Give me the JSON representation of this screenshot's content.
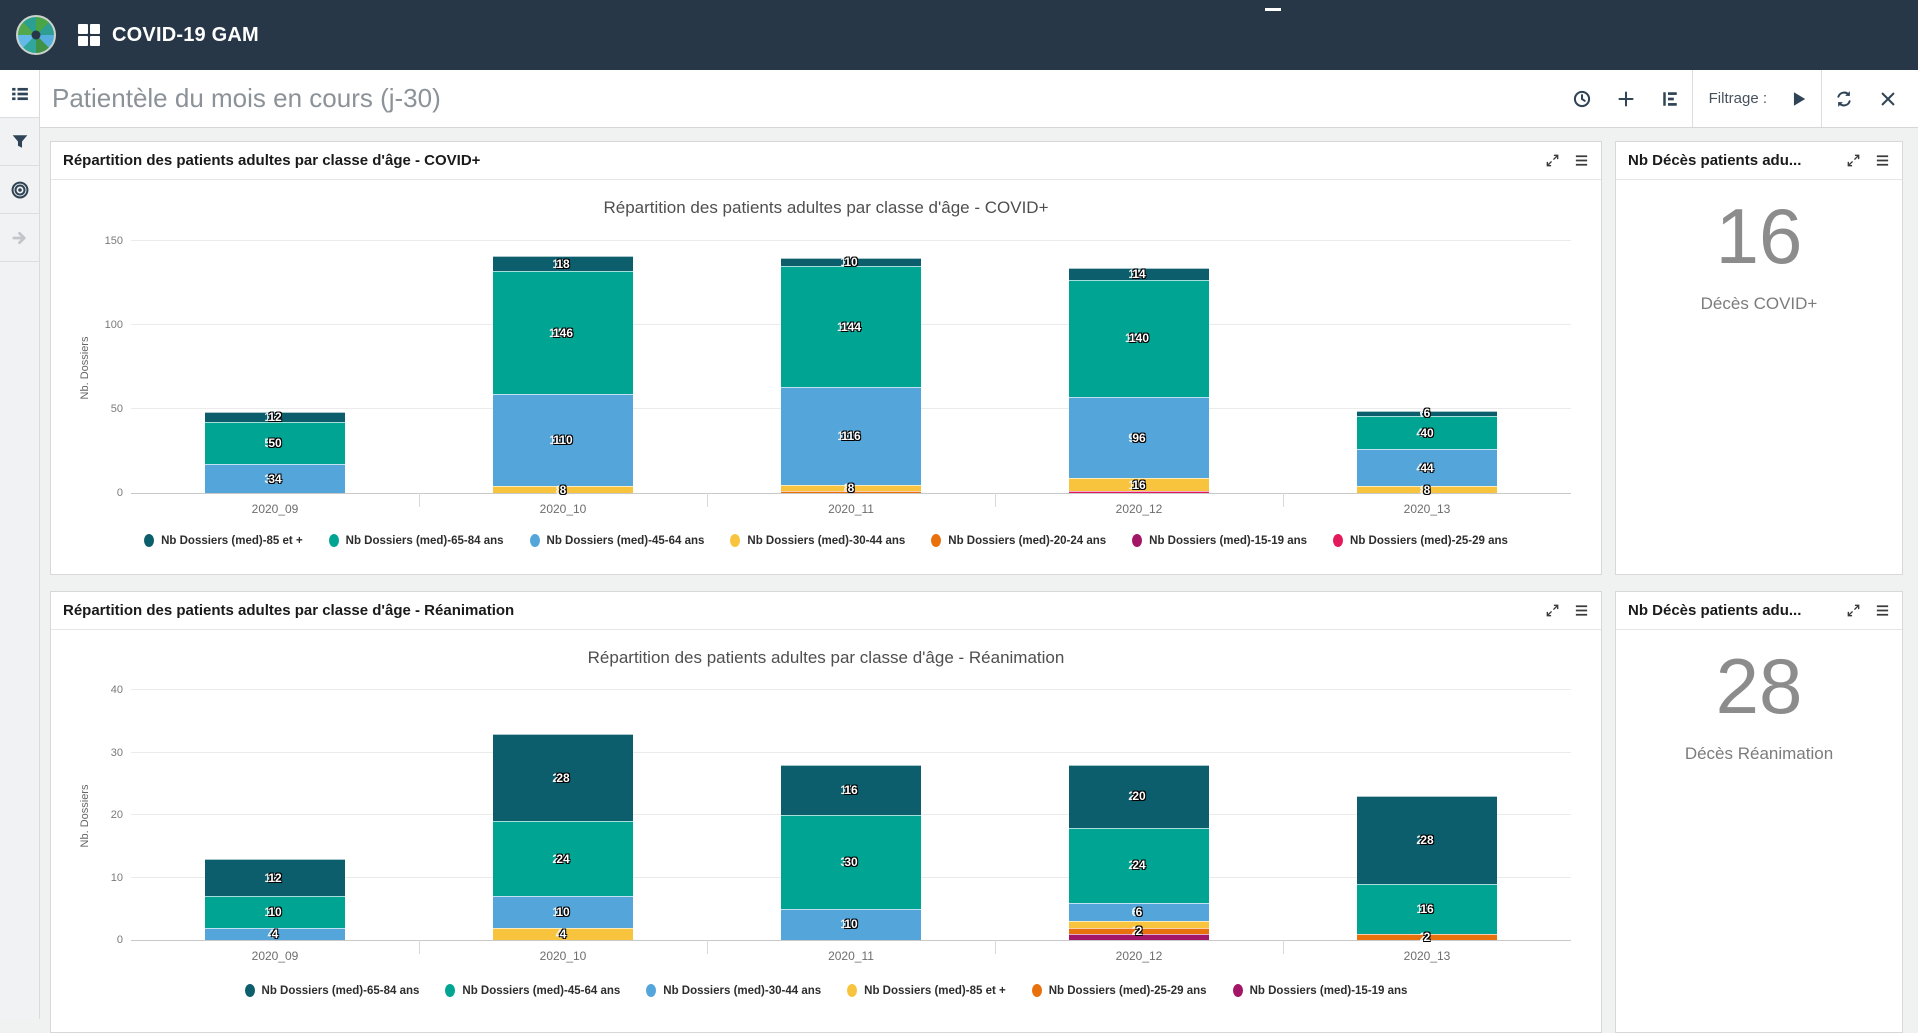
{
  "navbar": {
    "app_title": "COVID-19 GAM"
  },
  "toolbar": {
    "page_title": "Patientèle du mois en cours (j-30)",
    "filter_label": "Filtrage :"
  },
  "panels": {
    "covid_chart": {
      "header": "Répartition des patients adultes par classe d'âge - COVID+"
    },
    "rea_chart": {
      "header": "Répartition des patients adultes par classe d'âge - Réanimation"
    },
    "covid_metric": {
      "header": "Nb Décès patients adu...",
      "value": "16",
      "label": "Décès COVID+"
    },
    "rea_metric": {
      "header": "Nb Décès patients adu...",
      "value": "28",
      "label": "Décès Réanimation"
    }
  },
  "chart_data": [
    {
      "type": "bar",
      "stacked": true,
      "title": "Répartition des patients adultes par classe d'âge - COVID+",
      "xlabel": "",
      "ylabel": "Nb. Dossiers",
      "ylim": [
        0,
        150
      ],
      "yticks": [
        0,
        50,
        100,
        150
      ],
      "grid": true,
      "legend_position": "bottom",
      "bar_height_axis_ratio": 0.5,
      "categories": [
        "2020_09",
        "2020_10",
        "2020_11",
        "2020_12",
        "2020_13"
      ],
      "series": [
        {
          "name": "Nb Dossiers (med)-85 et +",
          "color": "#0d5e6d"
        },
        {
          "name": "Nb Dossiers (med)-65-84 ans",
          "color": "#00a492"
        },
        {
          "name": "Nb Dossiers (med)-45-64 ans",
          "color": "#54a5da"
        },
        {
          "name": "Nb Dossiers (med)-30-44 ans",
          "color": "#f8c43d"
        },
        {
          "name": "Nb Dossiers (med)-20-24 ans",
          "color": "#e8700d"
        },
        {
          "name": "Nb Dossiers (med)-15-19 ans",
          "color": "#a31567"
        },
        {
          "name": "Nb Dossiers (med)-25-29 ans",
          "color": "#e3195c"
        }
      ],
      "bars": [
        {
          "category": "2020_09",
          "segments": [
            {
              "series": "Nb Dossiers (med)-45-64 ans",
              "value": 34,
              "label": "34"
            },
            {
              "series": "Nb Dossiers (med)-65-84 ans",
              "value": 50,
              "label": "50"
            },
            {
              "series": "Nb Dossiers (med)-85 et +",
              "value": 12,
              "label": "12"
            }
          ]
        },
        {
          "category": "2020_10",
          "segments": [
            {
              "series": "Nb Dossiers (med)-30-44 ans",
              "value": 8,
              "label": "8"
            },
            {
              "series": "Nb Dossiers (med)-45-64 ans",
              "value": 110,
              "label": "110"
            },
            {
              "series": "Nb Dossiers (med)-65-84 ans",
              "value": 146,
              "label": "146"
            },
            {
              "series": "Nb Dossiers (med)-85 et +",
              "value": 18,
              "label": "18"
            }
          ]
        },
        {
          "category": "2020_11",
          "segments": [
            {
              "series": "Nb Dossiers (med)-20-24 ans",
              "value": 2,
              "label": null
            },
            {
              "series": "Nb Dossiers (med)-30-44 ans",
              "value": 8,
              "label": "8"
            },
            {
              "series": "Nb Dossiers (med)-45-64 ans",
              "value": 116,
              "label": "116"
            },
            {
              "series": "Nb Dossiers (med)-65-84 ans",
              "value": 144,
              "label": "144"
            },
            {
              "series": "Nb Dossiers (med)-85 et +",
              "value": 10,
              "label": "10"
            }
          ]
        },
        {
          "category": "2020_12",
          "segments": [
            {
              "series": "Nb Dossiers (med)-25-29 ans",
              "value": 2,
              "label": null
            },
            {
              "series": "Nb Dossiers (med)-30-44 ans",
              "value": 16,
              "label": "16"
            },
            {
              "series": "Nb Dossiers (med)-45-64 ans",
              "value": 96,
              "label": "96"
            },
            {
              "series": "Nb Dossiers (med)-65-84 ans",
              "value": 140,
              "label": "140"
            },
            {
              "series": "Nb Dossiers (med)-85 et +",
              "value": 14,
              "label": "14"
            }
          ]
        },
        {
          "category": "2020_13",
          "segments": [
            {
              "series": "Nb Dossiers (med)-30-44 ans",
              "value": 8,
              "label": "8"
            },
            {
              "series": "Nb Dossiers (med)-45-64 ans",
              "value": 44,
              "label": "44"
            },
            {
              "series": "Nb Dossiers (med)-65-84 ans",
              "value": 40,
              "label": "40"
            },
            {
              "series": "Nb Dossiers (med)-85 et +",
              "value": 6,
              "label": "6"
            }
          ]
        }
      ]
    },
    {
      "type": "bar",
      "stacked": true,
      "title": "Répartition des patients adultes par classe d'âge - Réanimation",
      "xlabel": "",
      "ylabel": "Nb. Dossiers",
      "ylim": [
        0,
        40
      ],
      "yticks": [
        0,
        10,
        20,
        30,
        40
      ],
      "grid": true,
      "legend_position": "bottom",
      "bar_height_axis_ratio": 0.5,
      "categories": [
        "2020_09",
        "2020_10",
        "2020_11",
        "2020_12",
        "2020_13"
      ],
      "series": [
        {
          "name": "Nb Dossiers (med)-65-84 ans",
          "color": "#0d5e6d"
        },
        {
          "name": "Nb Dossiers (med)-45-64 ans",
          "color": "#00a492"
        },
        {
          "name": "Nb Dossiers (med)-30-44 ans",
          "color": "#54a5da"
        },
        {
          "name": "Nb Dossiers (med)-85 et +",
          "color": "#f8c43d"
        },
        {
          "name": "Nb Dossiers (med)-25-29 ans",
          "color": "#e8700d"
        },
        {
          "name": "Nb Dossiers (med)-15-19 ans",
          "color": "#a31567"
        }
      ],
      "bars": [
        {
          "category": "2020_09",
          "segments": [
            {
              "series": "Nb Dossiers (med)-30-44 ans",
              "value": 4,
              "label": "4"
            },
            {
              "series": "Nb Dossiers (med)-45-64 ans",
              "value": 10,
              "label": "10"
            },
            {
              "series": "Nb Dossiers (med)-65-84 ans",
              "value": 12,
              "label": "12"
            }
          ]
        },
        {
          "category": "2020_10",
          "segments": [
            {
              "series": "Nb Dossiers (med)-85 et +",
              "value": 4,
              "label": "4"
            },
            {
              "series": "Nb Dossiers (med)-30-44 ans",
              "value": 10,
              "label": "10"
            },
            {
              "series": "Nb Dossiers (med)-45-64 ans",
              "value": 24,
              "label": "24"
            },
            {
              "series": "Nb Dossiers (med)-65-84 ans",
              "value": 28,
              "label": "28"
            }
          ]
        },
        {
          "category": "2020_11",
          "segments": [
            {
              "series": "Nb Dossiers (med)-30-44 ans",
              "value": 10,
              "label": "10"
            },
            {
              "series": "Nb Dossiers (med)-45-64 ans",
              "value": 30,
              "label": "30"
            },
            {
              "series": "Nb Dossiers (med)-65-84 ans",
              "value": 16,
              "label": "16"
            }
          ]
        },
        {
          "category": "2020_12",
          "segments": [
            {
              "series": "Nb Dossiers (med)-15-19 ans",
              "value": 2,
              "label": null
            },
            {
              "series": "Nb Dossiers (med)-25-29 ans",
              "value": 2,
              "label": "2"
            },
            {
              "series": "Nb Dossiers (med)-85 et +",
              "value": 2,
              "label": null
            },
            {
              "series": "Nb Dossiers (med)-30-44 ans",
              "value": 6,
              "label": "6"
            },
            {
              "series": "Nb Dossiers (med)-45-64 ans",
              "value": 24,
              "label": "24"
            },
            {
              "series": "Nb Dossiers (med)-65-84 ans",
              "value": 20,
              "label": "20"
            }
          ]
        },
        {
          "category": "2020_13",
          "segments": [
            {
              "series": "Nb Dossiers (med)-25-29 ans",
              "value": 2,
              "label": "2"
            },
            {
              "series": "Nb Dossiers (med)-45-64 ans",
              "value": 16,
              "label": "16"
            },
            {
              "series": "Nb Dossiers (med)-65-84 ans",
              "value": 28,
              "label": "28"
            }
          ]
        }
      ]
    }
  ]
}
